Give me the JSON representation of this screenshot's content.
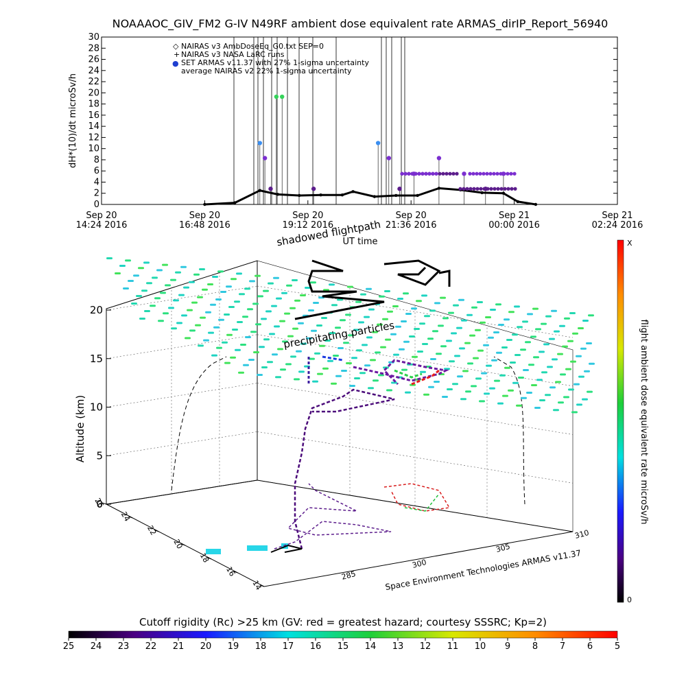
{
  "title": "NOAAAOC_GIV_FM2 G-IV   N49RF  ambient dose equivalent rate ARMAS_dirIP_Report_56940",
  "top_chart": {
    "ylabel": "dH*(10)/dt microSv/h",
    "xlabel": "UT time",
    "legend": [
      {
        "marker": "◇",
        "label": "NAIRAS v3 AmbDoseEq_G0.txt SEP=0"
      },
      {
        "marker": "+",
        "label": "NAIRAS v3 NASA LaRC runs"
      },
      {
        "marker": "●",
        "label": "SET ARMAS v11.37 with 27% 1-sigma uncertainty",
        "color": "#1f3fd0"
      },
      {
        "marker": "",
        "label": "average NAIRAS v2 22% 1-sigma uncertainty"
      }
    ],
    "x_ticks": [
      {
        "l1": "Sep 20",
        "l2": "14:24 2016"
      },
      {
        "l1": "Sep 20",
        "l2": "16:48 2016"
      },
      {
        "l1": "Sep 20",
        "l2": "19:12 2016"
      },
      {
        "l1": "Sep 20",
        "l2": "21:36 2016"
      },
      {
        "l1": "Sep 21",
        "l2": "00:00 2016"
      },
      {
        "l1": "Sep 21",
        "l2": "02:24 2016"
      }
    ],
    "y_ticks": [
      "0",
      "2",
      "4",
      "6",
      "8",
      "10",
      "12",
      "14",
      "16",
      "18",
      "20",
      "22",
      "24",
      "26",
      "28",
      "30"
    ]
  },
  "chart_data": [
    {
      "type": "scatter",
      "title": "NOAAAOC_GIV_FM2 G-IV   N49RF  ambient dose equivalent rate ARMAS_dirIP_Report_56940",
      "xlabel": "UT time",
      "ylabel": "dH*(10)/dt microSv/h",
      "ylim": [
        0,
        30
      ],
      "xlim": [
        "2016-09-20 14:24",
        "2016-09-21 02:24"
      ],
      "series": [
        {
          "name": "NAIRAS v3 AmbDoseEq_G0.txt SEP=0",
          "x": [
            "2016-09-20 16:48",
            "2016-09-20 17:30",
            "2016-09-20 18:05",
            "2016-09-20 18:30",
            "2016-09-20 19:00",
            "2016-09-20 19:30",
            "2016-09-20 20:00",
            "2016-09-20 20:15",
            "2016-09-20 20:45",
            "2016-09-20 21:15",
            "2016-09-20 21:45",
            "2016-09-20 22:15",
            "2016-09-20 22:45",
            "2016-09-20 23:15",
            "2016-09-20 23:45",
            "2016-09-21 00:05",
            "2016-09-21 00:30"
          ],
          "values": [
            0,
            0.3,
            2.5,
            1.8,
            1.6,
            1.7,
            1.7,
            2.3,
            1.4,
            1.6,
            1.6,
            2.9,
            2.6,
            2.1,
            2.0,
            0.5,
            0
          ]
        },
        {
          "name": "SET ARMAS v11.37 with 27% 1-sigma uncertainty",
          "x": [
            "2016-09-20 18:05",
            "2016-09-20 18:12",
            "2016-09-20 18:20",
            "2016-09-20 18:28",
            "2016-09-20 18:36",
            "2016-09-20 19:20",
            "2016-09-20 20:50",
            "2016-09-20 21:05",
            "2016-09-20 21:20",
            "2016-09-20 21:40",
            "2016-09-20 22:15",
            "2016-09-20 22:50",
            "2016-09-20 23:20",
            "2016-09-20 23:45"
          ],
          "values": [
            11,
            8.3,
            2.8,
            19.3,
            19.3,
            2.8,
            11,
            8.3,
            2.8,
            5.5,
            8.3,
            5.5,
            2.8,
            5.5
          ]
        }
      ]
    },
    {
      "type": "scatter",
      "title": "shadowed flightpath",
      "xlabel": "",
      "ylabel": "Altitude (km)",
      "annotation": "precipitating particles",
      "z_ticks": [
        "0",
        "5",
        "10",
        "15",
        "20"
      ],
      "left_axis_ticks": [
        "14",
        "16",
        "18",
        "20",
        "22",
        "24",
        "26"
      ],
      "front_axis_ticks": [
        "285",
        "300",
        "305",
        "310"
      ],
      "credit": "Space Environment Technologies ARMAS v11.37",
      "colorbar_label": "flight ambient dose equivalent rate microSv/h",
      "colorbar_max": "X",
      "colorbar_min": "0"
    }
  ],
  "bottom_colorbar": {
    "title": "Cutoff rigidity (Rc) >25 km (GV: red = greatest hazard; courtesy SSSRC; Kp=2)",
    "ticks": [
      "25",
      "24",
      "23",
      "22",
      "21",
      "20",
      "19",
      "18",
      "17",
      "16",
      "15",
      "14",
      "13",
      "12",
      "11",
      "10",
      "9",
      "8",
      "7",
      "6",
      "5"
    ]
  }
}
